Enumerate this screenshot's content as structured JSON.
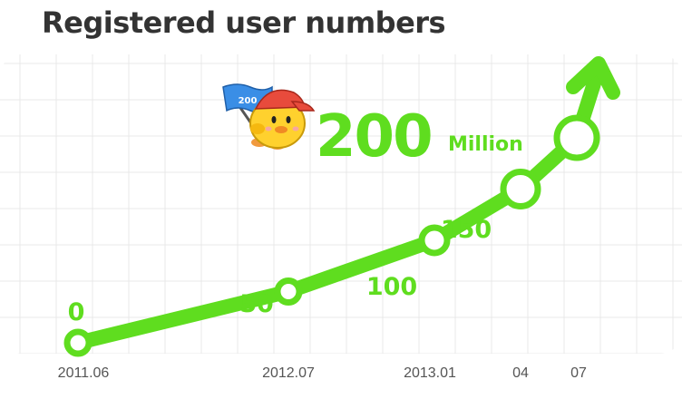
{
  "chart_data": {
    "type": "line",
    "title": "Registered user numbers",
    "x": [
      "2011.06",
      "2012.07",
      "2013.01",
      "04",
      "07"
    ],
    "series": [
      {
        "values": [
          0,
          50,
          100,
          150,
          200
        ]
      }
    ],
    "data_labels": [
      "0",
      "50",
      "100",
      "150",
      "200"
    ],
    "headline": {
      "value": "200",
      "unit": "Million"
    },
    "mascot_badge": "200",
    "grid": true,
    "colors": {
      "line": "#5FDD1F",
      "text": "#333333",
      "tick": "#555555",
      "grid": "#E8E8E8",
      "marker_fill": "#ffffff"
    }
  }
}
